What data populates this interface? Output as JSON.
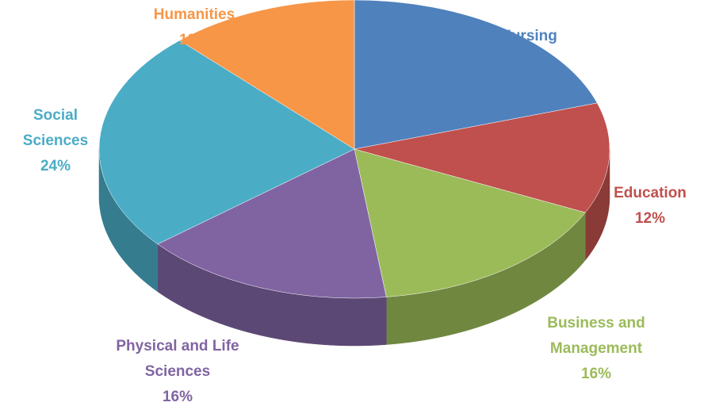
{
  "chart_data": {
    "type": "pie3d",
    "categories": [
      "Nursing",
      "Education",
      "Business and Management",
      "Physical and Life Sciences",
      "Social Sciences",
      "Humanities"
    ],
    "values": [
      20,
      12,
      16,
      16,
      24,
      12
    ],
    "value_labels": [
      "20%",
      "12%",
      "16%",
      "16%",
      "24%",
      "12%"
    ],
    "colors": [
      "#4f81bd",
      "#c0504d",
      "#9bbb59",
      "#8064a2",
      "#4bacc6",
      "#f79646"
    ]
  }
}
